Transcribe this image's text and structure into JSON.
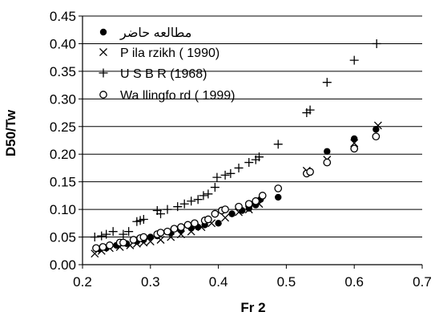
{
  "chart_data": {
    "type": "scatter",
    "xlabel": "Fr 2",
    "ylabel": "D50/Tw",
    "xlim": [
      0.2,
      0.7
    ],
    "ylim": [
      0.0,
      0.45
    ],
    "x_ticks": [
      "0.2",
      "0.3",
      "0.4",
      "0.5",
      "0.6",
      "0.7"
    ],
    "y_ticks": [
      "0.00",
      "0.05",
      "0.10",
      "0.15",
      "0.20",
      "0.25",
      "0.30",
      "0.35",
      "0.40",
      "0.45"
    ],
    "grid": "horizontal",
    "legend_position": "top-left",
    "series": [
      {
        "name": "مطالعه حاضر",
        "marker": "filled-circle",
        "points": [
          [
            0.225,
            0.028
          ],
          [
            0.235,
            0.03
          ],
          [
            0.25,
            0.035
          ],
          [
            0.265,
            0.038
          ],
          [
            0.28,
            0.042
          ],
          [
            0.29,
            0.045
          ],
          [
            0.3,
            0.05
          ],
          [
            0.31,
            0.052
          ],
          [
            0.33,
            0.058
          ],
          [
            0.345,
            0.062
          ],
          [
            0.36,
            0.066
          ],
          [
            0.37,
            0.068
          ],
          [
            0.38,
            0.072
          ],
          [
            0.4,
            0.075
          ],
          [
            0.42,
            0.092
          ],
          [
            0.435,
            0.098
          ],
          [
            0.445,
            0.102
          ],
          [
            0.455,
            0.108
          ],
          [
            0.462,
            0.118
          ],
          [
            0.488,
            0.122
          ],
          [
            0.56,
            0.205
          ],
          [
            0.6,
            0.228
          ],
          [
            0.632,
            0.245
          ]
        ]
      },
      {
        "name": "P ila rzikh ( 1990)",
        "marker": "x",
        "points": [
          [
            0.218,
            0.02
          ],
          [
            0.228,
            0.025
          ],
          [
            0.24,
            0.03
          ],
          [
            0.255,
            0.032
          ],
          [
            0.27,
            0.035
          ],
          [
            0.28,
            0.038
          ],
          [
            0.29,
            0.04
          ],
          [
            0.3,
            0.042
          ],
          [
            0.315,
            0.045
          ],
          [
            0.33,
            0.05
          ],
          [
            0.345,
            0.055
          ],
          [
            0.36,
            0.06
          ],
          [
            0.375,
            0.068
          ],
          [
            0.39,
            0.075
          ],
          [
            0.41,
            0.085
          ],
          [
            0.43,
            0.095
          ],
          [
            0.445,
            0.1
          ],
          [
            0.46,
            0.11
          ],
          [
            0.53,
            0.17
          ],
          [
            0.56,
            0.19
          ],
          [
            0.6,
            0.22
          ],
          [
            0.635,
            0.252
          ]
        ]
      },
      {
        "name": "U S B R (1968)",
        "marker": "plus",
        "points": [
          [
            0.218,
            0.05
          ],
          [
            0.228,
            0.052
          ],
          [
            0.235,
            0.055
          ],
          [
            0.245,
            0.06
          ],
          [
            0.26,
            0.055
          ],
          [
            0.268,
            0.06
          ],
          [
            0.28,
            0.078
          ],
          [
            0.285,
            0.08
          ],
          [
            0.29,
            0.082
          ],
          [
            0.31,
            0.098
          ],
          [
            0.315,
            0.092
          ],
          [
            0.325,
            0.1
          ],
          [
            0.34,
            0.105
          ],
          [
            0.35,
            0.11
          ],
          [
            0.36,
            0.115
          ],
          [
            0.37,
            0.118
          ],
          [
            0.378,
            0.125
          ],
          [
            0.385,
            0.128
          ],
          [
            0.395,
            0.14
          ],
          [
            0.398,
            0.158
          ],
          [
            0.41,
            0.162
          ],
          [
            0.418,
            0.165
          ],
          [
            0.43,
            0.175
          ],
          [
            0.445,
            0.185
          ],
          [
            0.455,
            0.19
          ],
          [
            0.46,
            0.195
          ],
          [
            0.488,
            0.218
          ],
          [
            0.53,
            0.275
          ],
          [
            0.535,
            0.28
          ],
          [
            0.56,
            0.33
          ],
          [
            0.6,
            0.37
          ],
          [
            0.633,
            0.4
          ]
        ]
      },
      {
        "name": "Wa llingfo rd ( 1999)",
        "marker": "open-circle",
        "points": [
          [
            0.22,
            0.03
          ],
          [
            0.23,
            0.032
          ],
          [
            0.24,
            0.035
          ],
          [
            0.255,
            0.04
          ],
          [
            0.26,
            0.04
          ],
          [
            0.275,
            0.045
          ],
          [
            0.285,
            0.048
          ],
          [
            0.29,
            0.05
          ],
          [
            0.31,
            0.055
          ],
          [
            0.315,
            0.058
          ],
          [
            0.325,
            0.06
          ],
          [
            0.335,
            0.065
          ],
          [
            0.345,
            0.068
          ],
          [
            0.355,
            0.072
          ],
          [
            0.365,
            0.075
          ],
          [
            0.38,
            0.08
          ],
          [
            0.385,
            0.082
          ],
          [
            0.395,
            0.092
          ],
          [
            0.405,
            0.098
          ],
          [
            0.41,
            0.1
          ],
          [
            0.43,
            0.105
          ],
          [
            0.445,
            0.11
          ],
          [
            0.455,
            0.115
          ],
          [
            0.465,
            0.125
          ],
          [
            0.488,
            0.138
          ],
          [
            0.53,
            0.165
          ],
          [
            0.535,
            0.168
          ],
          [
            0.56,
            0.185
          ],
          [
            0.6,
            0.21
          ],
          [
            0.632,
            0.232
          ]
        ]
      }
    ]
  }
}
